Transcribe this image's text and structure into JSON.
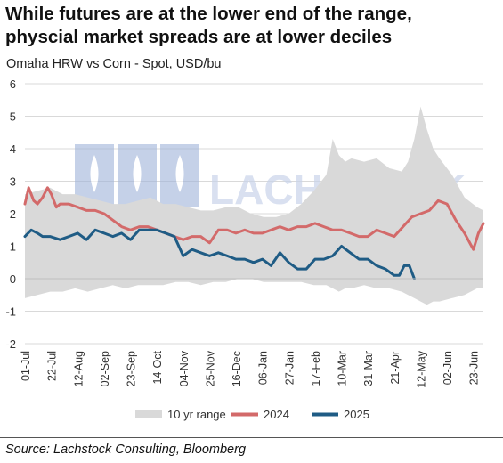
{
  "header": {
    "title_line1": "While futures are at the lower end of the range,",
    "title_line2": "physcial market spreads are at lower deciles",
    "subtitle": "Omaha HRW vs Corn - Spot, USD/bu"
  },
  "footer": {
    "source": "Source: Lachstock Consulting, Bloomberg"
  },
  "watermark": {
    "text": "LACHSTOCK",
    "color": "#c9d4ea"
  },
  "chart_data": {
    "type": "area+line",
    "title": "",
    "xlabel": "",
    "ylabel": "",
    "ylim": [
      -2,
      6
    ],
    "yticks": [
      -2,
      -1,
      0,
      1,
      2,
      3,
      4,
      5,
      6
    ],
    "x_tick_labels": [
      "01-Jul",
      "22-Jul",
      "12-Aug",
      "02-Sep",
      "23-Sep",
      "14-Oct",
      "04-Nov",
      "25-Nov",
      "16-Dec",
      "06-Jan",
      "27-Jan",
      "17-Feb",
      "10-Mar",
      "31-Mar",
      "21-Apr",
      "12-May",
      "02-Jun",
      "23-Jun"
    ],
    "x_tick_days": [
      0,
      21,
      42,
      63,
      84,
      105,
      126,
      147,
      168,
      189,
      210,
      231,
      252,
      273,
      294,
      315,
      336,
      357
    ],
    "x_range_days": [
      0,
      365
    ],
    "grid": true,
    "legend_position": "bottom",
    "series": [
      {
        "name": "10 yr range",
        "kind": "band",
        "color": "#d9d9d9",
        "x": [
          0,
          10,
          20,
          30,
          40,
          50,
          60,
          70,
          80,
          90,
          100,
          110,
          120,
          130,
          140,
          150,
          160,
          170,
          180,
          190,
          200,
          210,
          220,
          230,
          240,
          245,
          250,
          255,
          260,
          270,
          280,
          290,
          300,
          305,
          310,
          315,
          320,
          325,
          330,
          340,
          350,
          360,
          365
        ],
        "low": [
          -0.6,
          -0.5,
          -0.4,
          -0.4,
          -0.3,
          -0.4,
          -0.3,
          -0.2,
          -0.3,
          -0.2,
          -0.2,
          -0.2,
          -0.1,
          -0.1,
          -0.2,
          -0.1,
          -0.1,
          0.0,
          0.0,
          -0.1,
          -0.1,
          -0.1,
          -0.1,
          -0.2,
          -0.2,
          -0.3,
          -0.4,
          -0.3,
          -0.3,
          -0.2,
          -0.3,
          -0.3,
          -0.4,
          -0.5,
          -0.6,
          -0.7,
          -0.8,
          -0.7,
          -0.7,
          -0.6,
          -0.5,
          -0.3,
          -0.3
        ],
        "high": [
          2.6,
          2.7,
          2.8,
          2.6,
          2.6,
          2.5,
          2.4,
          2.3,
          2.3,
          2.4,
          2.5,
          2.3,
          2.3,
          2.2,
          2.1,
          2.1,
          2.2,
          2.2,
          2.0,
          1.9,
          1.9,
          2.0,
          2.3,
          2.7,
          3.2,
          4.3,
          3.8,
          3.6,
          3.7,
          3.6,
          3.7,
          3.4,
          3.3,
          3.6,
          4.3,
          5.3,
          4.6,
          4.0,
          3.7,
          3.2,
          2.5,
          2.2,
          2.1
        ]
      },
      {
        "name": "2024",
        "kind": "line",
        "color": "#d36a6a",
        "x": [
          0,
          3,
          7,
          10,
          14,
          18,
          21,
          25,
          28,
          35,
          42,
          49,
          56,
          63,
          70,
          77,
          84,
          91,
          98,
          105,
          112,
          119,
          126,
          133,
          140,
          147,
          154,
          161,
          168,
          175,
          182,
          189,
          196,
          203,
          210,
          217,
          224,
          231,
          238,
          245,
          252,
          259,
          266,
          273,
          280,
          287,
          294,
          301,
          308,
          315,
          322,
          329,
          336,
          343,
          350,
          357,
          361,
          365
        ],
        "values": [
          2.3,
          2.8,
          2.4,
          2.3,
          2.5,
          2.8,
          2.6,
          2.2,
          2.3,
          2.3,
          2.2,
          2.1,
          2.1,
          2.0,
          1.8,
          1.6,
          1.5,
          1.6,
          1.6,
          1.5,
          1.4,
          1.3,
          1.2,
          1.3,
          1.3,
          1.1,
          1.5,
          1.5,
          1.4,
          1.5,
          1.4,
          1.4,
          1.5,
          1.6,
          1.5,
          1.6,
          1.6,
          1.7,
          1.6,
          1.5,
          1.5,
          1.4,
          1.3,
          1.3,
          1.5,
          1.4,
          1.3,
          1.6,
          1.9,
          2.0,
          2.1,
          2.4,
          2.3,
          1.8,
          1.4,
          0.9,
          1.4,
          1.7
        ]
      },
      {
        "name": "2025",
        "kind": "line",
        "color": "#1f5c85",
        "x": [
          0,
          5,
          10,
          14,
          20,
          28,
          35,
          42,
          49,
          56,
          63,
          70,
          77,
          84,
          91,
          98,
          105,
          112,
          119,
          126,
          133,
          140,
          147,
          154,
          161,
          168,
          175,
          182,
          189,
          196,
          203,
          210,
          217,
          224,
          231,
          238,
          245,
          252,
          259,
          266,
          273,
          280,
          287,
          294,
          298,
          302,
          306,
          310
        ],
        "values": [
          1.3,
          1.5,
          1.4,
          1.3,
          1.3,
          1.2,
          1.3,
          1.4,
          1.2,
          1.5,
          1.4,
          1.3,
          1.4,
          1.2,
          1.5,
          1.5,
          1.5,
          1.4,
          1.3,
          0.7,
          0.9,
          0.8,
          0.7,
          0.8,
          0.7,
          0.6,
          0.6,
          0.5,
          0.6,
          0.4,
          0.8,
          0.5,
          0.3,
          0.3,
          0.6,
          0.6,
          0.7,
          1.0,
          0.8,
          0.6,
          0.6,
          0.4,
          0.3,
          0.1,
          0.1,
          0.4,
          0.4,
          0.0
        ]
      }
    ]
  }
}
